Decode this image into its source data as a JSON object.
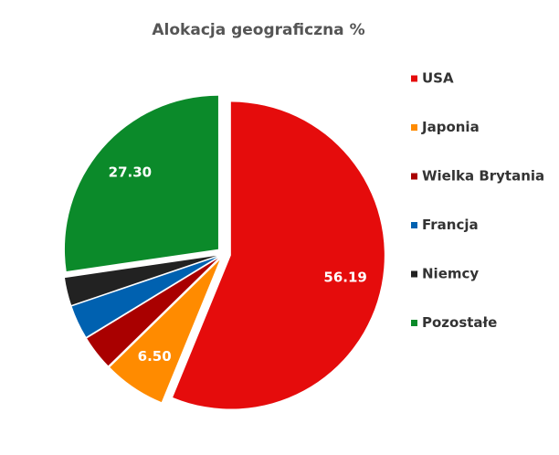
{
  "chart_data": {
    "type": "pie",
    "title": "Alokacja geograficzna %",
    "categories": [
      "USA",
      "Japonia",
      "Wielka Brytania",
      "Francja",
      "Niemcy",
      "Pozostałe"
    ],
    "values": [
      56.19,
      6.5,
      3.6,
      3.5,
      2.91,
      27.3
    ],
    "value_labels": [
      "56.19",
      "6.50",
      null,
      null,
      null,
      "27.30"
    ],
    "colors": [
      "#e50c0c",
      "#ff8b00",
      "#a90000",
      "#0061b0",
      "#222222",
      "#0b8a2a"
    ],
    "legend": "right"
  }
}
